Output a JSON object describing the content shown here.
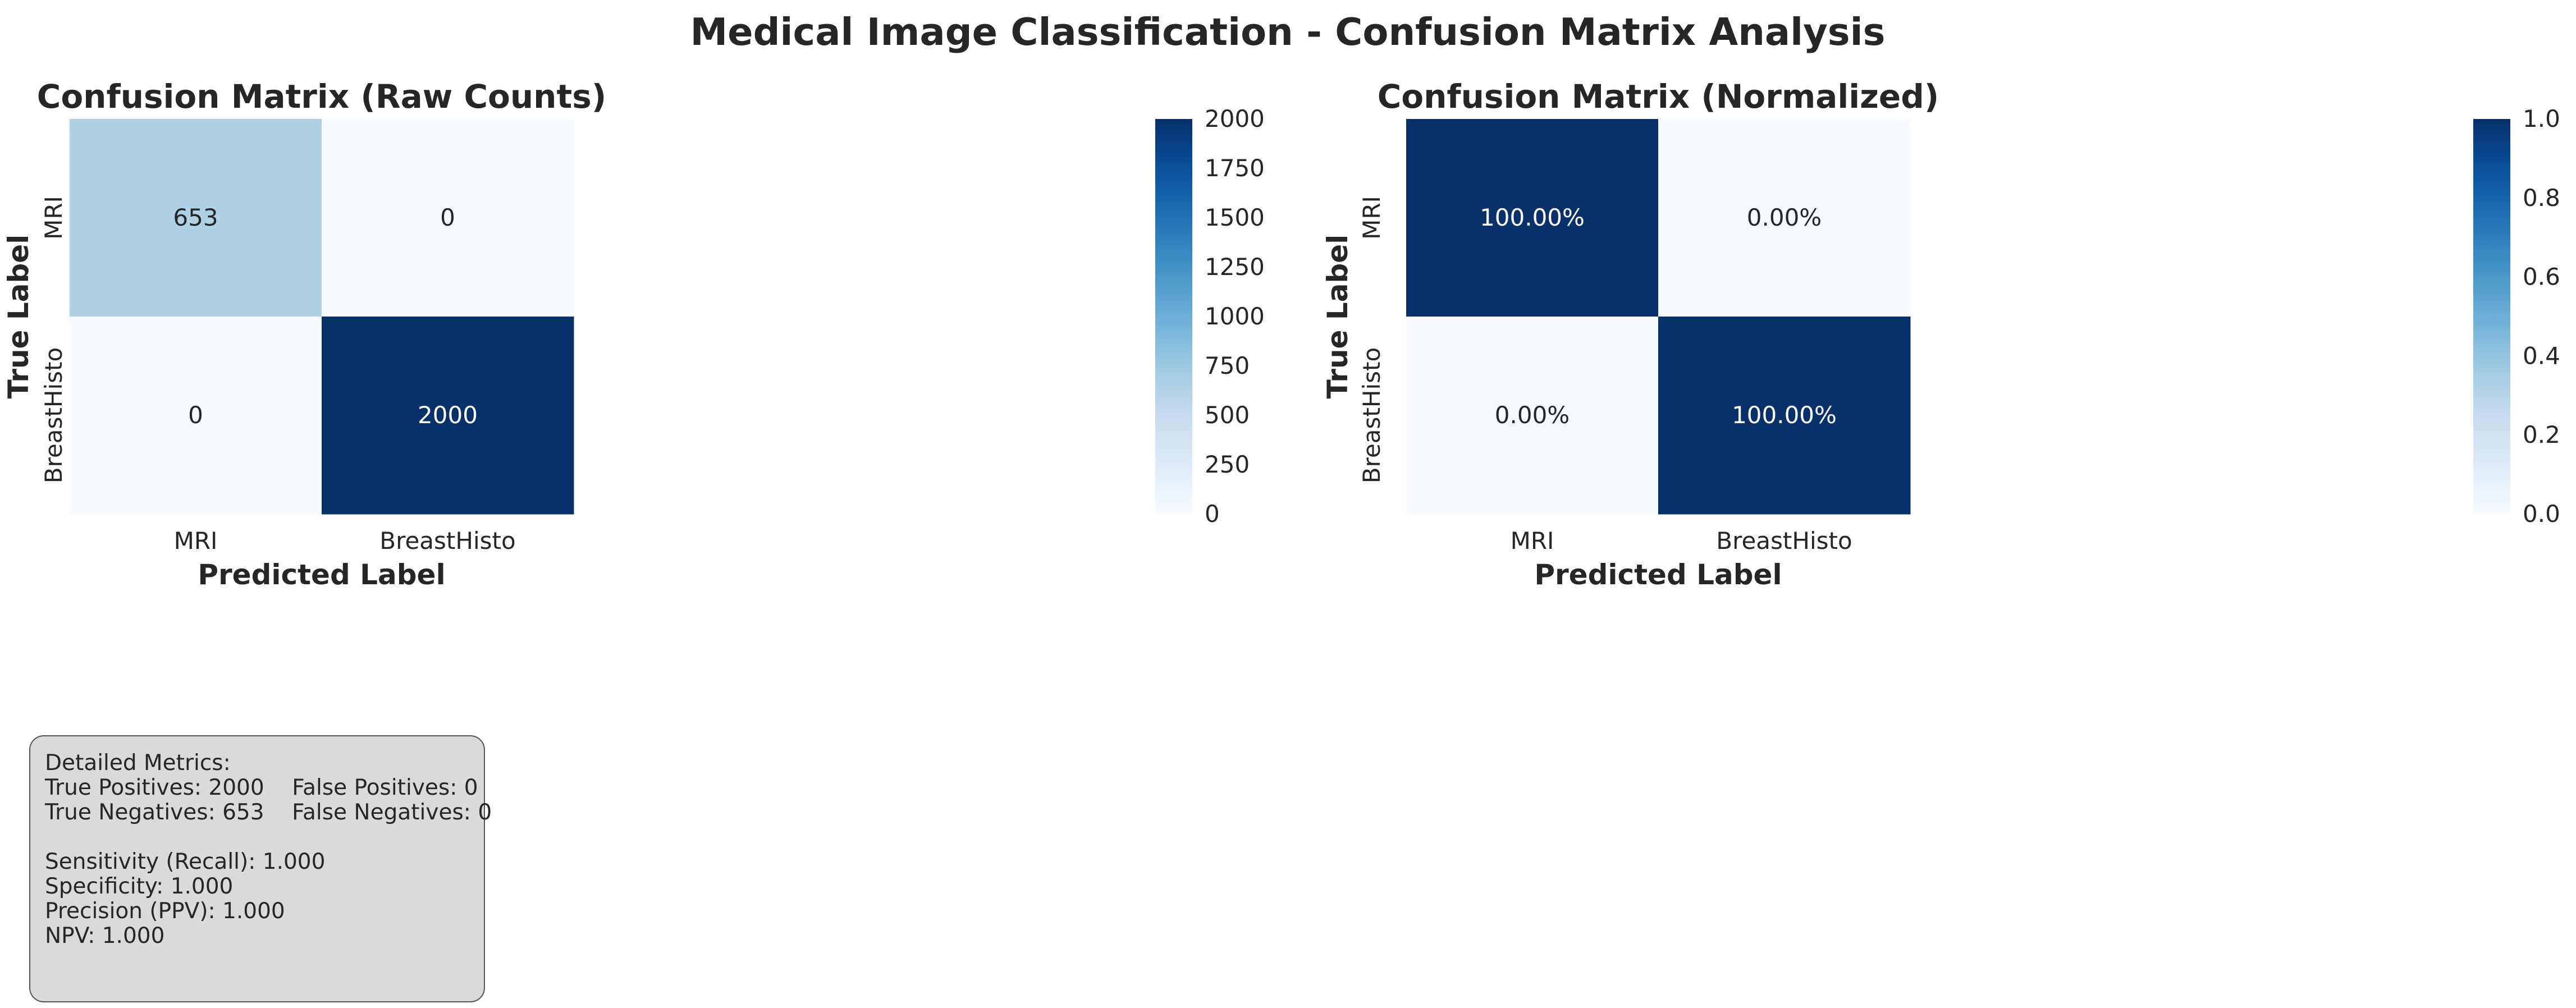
{
  "figure": {
    "suptitle": "Medical Image Classification - Confusion Matrix Analysis",
    "colormap": "Blues"
  },
  "chart_data": [
    {
      "type": "heatmap",
      "title": "Confusion Matrix (Raw Counts)",
      "xlabel": "Predicted Label",
      "ylabel": "True Label",
      "x_categories": [
        "MRI",
        "BreastHisto"
      ],
      "y_categories": [
        "MRI",
        "BreastHisto"
      ],
      "values": [
        [
          653,
          0
        ],
        [
          0,
          2000
        ]
      ],
      "cell_labels": [
        [
          "653",
          "0"
        ],
        [
          "0",
          "2000"
        ]
      ],
      "color_range": [
        0,
        2000
      ],
      "colorbar_ticks": [
        "0",
        "250",
        "500",
        "750",
        "1000",
        "1250",
        "1500",
        "1750",
        "2000"
      ],
      "grid": false
    },
    {
      "type": "heatmap",
      "title": "Confusion Matrix (Normalized)",
      "xlabel": "Predicted Label",
      "ylabel": "True Label",
      "x_categories": [
        "MRI",
        "BreastHisto"
      ],
      "y_categories": [
        "MRI",
        "BreastHisto"
      ],
      "values": [
        [
          1.0,
          0.0
        ],
        [
          0.0,
          1.0
        ]
      ],
      "cell_labels": [
        [
          "100.00%",
          "0.00%"
        ],
        [
          "0.00%",
          "100.00%"
        ]
      ],
      "color_range": [
        0,
        1
      ],
      "colorbar_ticks": [
        "0.0",
        "0.2",
        "0.4",
        "0.6",
        "0.8",
        "1.0"
      ],
      "grid": false
    }
  ],
  "metrics": {
    "heading": "Detailed Metrics:",
    "tp_line": "True Positives: 2000    False Positives: 0",
    "tn_line": "True Negatives: 653    False Negatives: 0",
    "sensitivity": "Sensitivity (Recall): 1.000",
    "specificity": "Specificity: 1.000",
    "precision": "Precision (PPV): 1.000",
    "npv": "NPV: 1.000"
  }
}
